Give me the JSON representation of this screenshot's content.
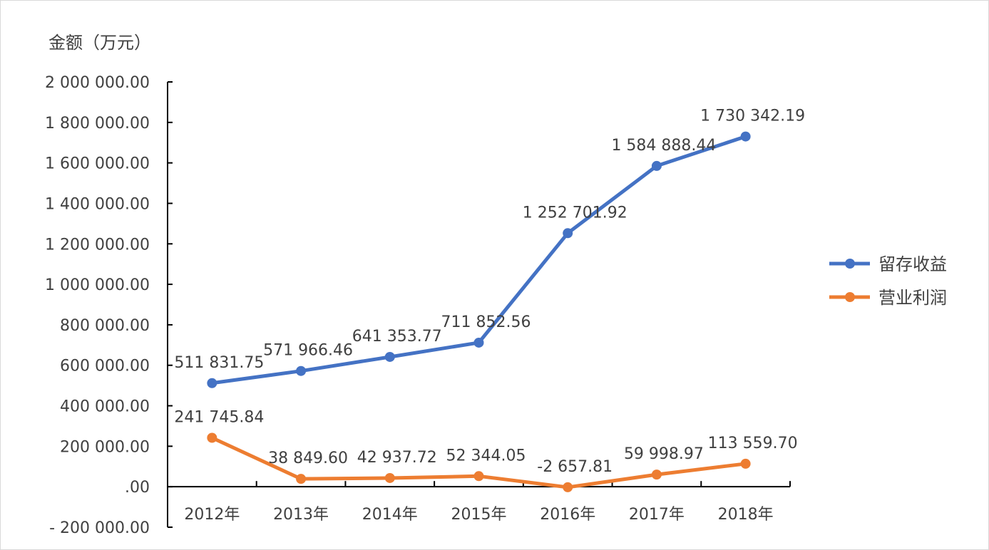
{
  "chart_data": {
    "type": "line",
    "title": "",
    "ylabel": "金额（万元）",
    "xlabel": "",
    "categories": [
      "2012年",
      "2013年",
      "2014年",
      "2015年",
      "2016年",
      "2017年",
      "2018年"
    ],
    "ylim": [
      -200000,
      2000000
    ],
    "yticks": [
      2000000,
      1800000,
      1600000,
      1400000,
      1200000,
      1000000,
      800000,
      600000,
      400000,
      200000,
      0,
      -200000
    ],
    "ytick_labels": [
      "2 000 000.00",
      "1 800 000.00",
      "1 600 000.00",
      "1 400 000.00",
      "1 200 000.00",
      "1 000 000.00",
      "800 000.00",
      "600 000.00",
      "400 000.00",
      "200 000.00",
      ".00",
      "-  200 000.00"
    ],
    "grid": false,
    "legend_position": "right",
    "series": [
      {
        "name": "留存收益",
        "color": "#4472c4",
        "values": [
          511831.75,
          571966.46,
          641353.77,
          711852.56,
          1252701.92,
          1584888.44,
          1730342.19
        ],
        "labels": [
          "511 831.75",
          "571 966.46",
          "641 353.77",
          "711 852.56",
          "1 252 701.92",
          "1 584 888.44",
          "1 730 342.19"
        ]
      },
      {
        "name": "营业利润",
        "color": "#ed7d31",
        "values": [
          241745.84,
          38849.6,
          42937.72,
          52344.05,
          -2657.81,
          59998.97,
          113559.7
        ],
        "labels": [
          "241 745.84",
          "38 849.60",
          "42 937.72",
          "52 344.05",
          "-2 657.81",
          "59 998.97",
          "113 559.70"
        ]
      }
    ]
  }
}
